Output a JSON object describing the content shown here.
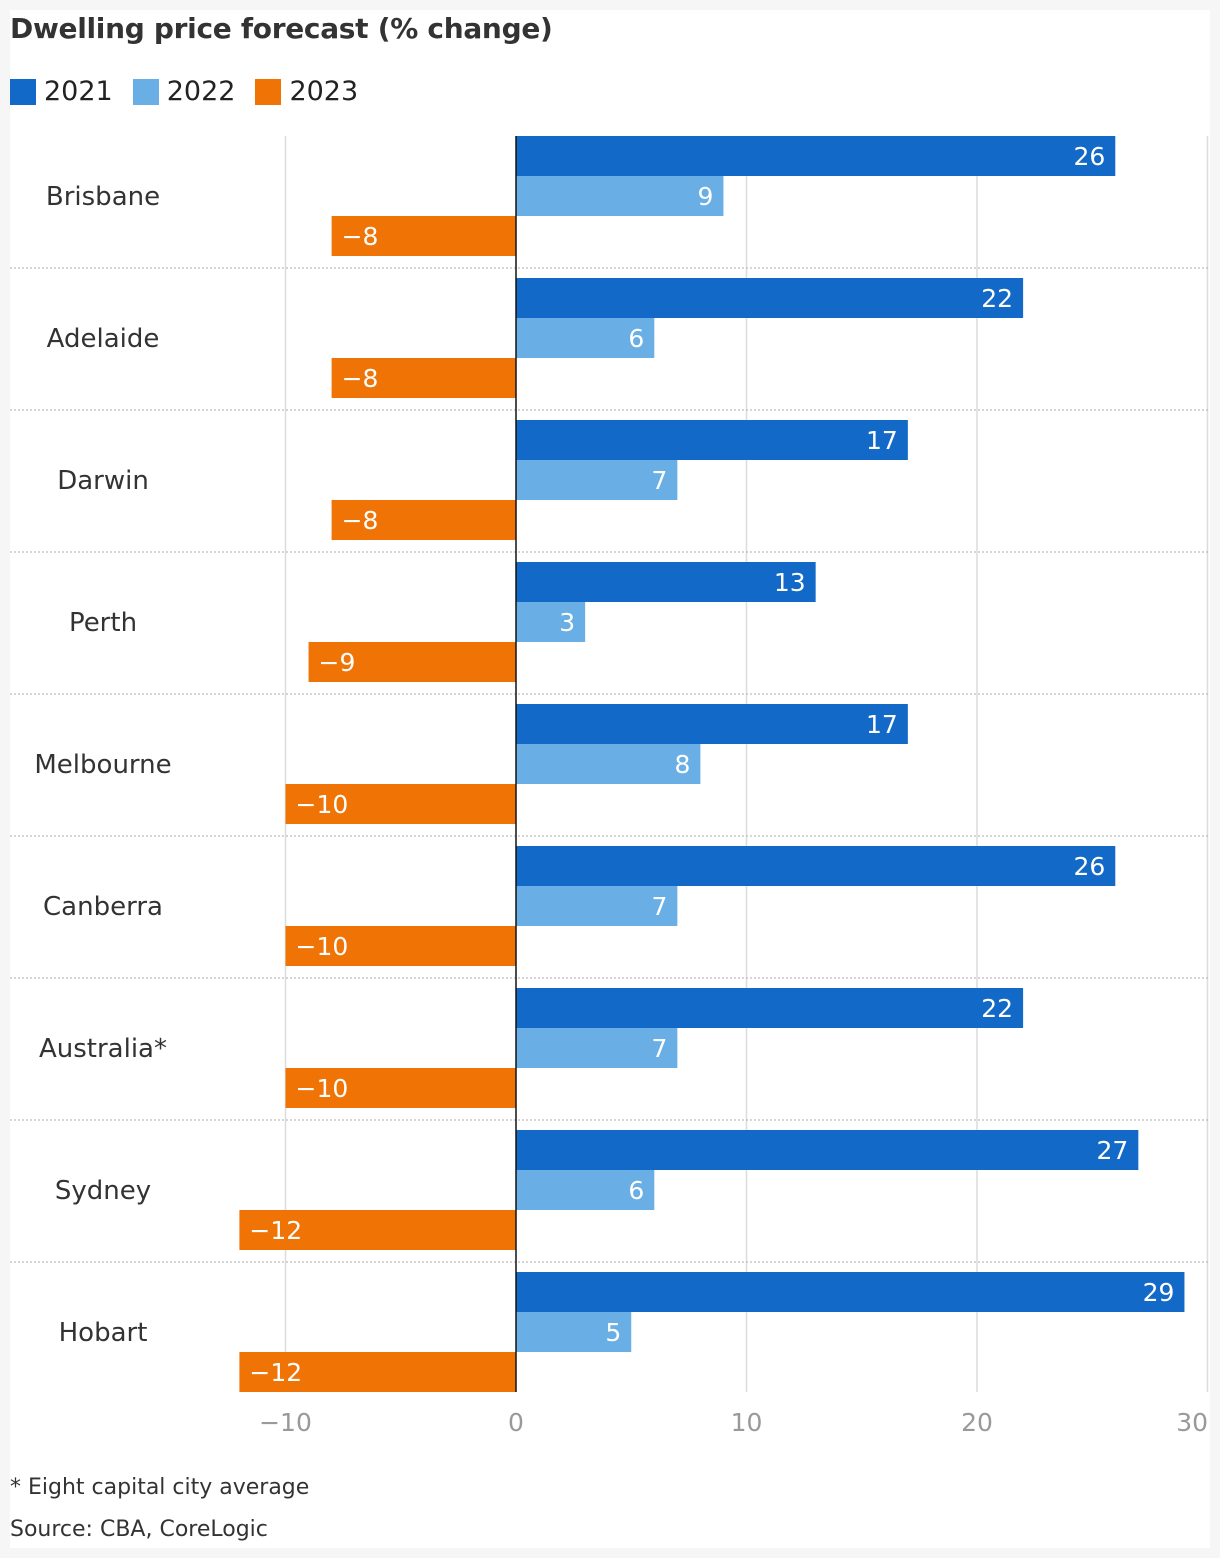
{
  "title": "Dwelling price forecast (% change)",
  "footnote": "* Eight capital city average",
  "source": "Source: CBA, CoreLogic",
  "colors": {
    "2021": "#1269c7",
    "2022": "#69afe5",
    "2023": "#f07306",
    "grid": "#dcdcdc",
    "zero": "#121212",
    "separator": "#bdbdbd",
    "tick": "#999999",
    "category": "#333333"
  },
  "chart_data": {
    "type": "bar",
    "orientation": "horizontal",
    "title": "Dwelling price forecast (% change)",
    "categories": [
      "Brisbane",
      "Adelaide",
      "Darwin",
      "Perth",
      "Melbourne",
      "Canberra",
      "Australia*",
      "Sydney",
      "Hobart"
    ],
    "series": [
      {
        "name": "2021",
        "values": [
          26,
          22,
          17,
          13,
          17,
          26,
          22,
          27,
          29
        ]
      },
      {
        "name": "2022",
        "values": [
          9,
          6,
          7,
          3,
          8,
          7,
          7,
          6,
          5
        ]
      },
      {
        "name": "2023",
        "values": [
          -8,
          -8,
          -8,
          -9,
          -10,
          -10,
          -10,
          -12,
          -12
        ]
      }
    ],
    "xlim": [
      -10,
      30
    ],
    "xticks": [
      -10,
      0,
      10,
      20,
      30
    ],
    "xtick_labels": [
      "−10",
      "0",
      "10",
      "20",
      "30"
    ],
    "grid": true,
    "legend_position": "top-left",
    "data_labels": true
  }
}
